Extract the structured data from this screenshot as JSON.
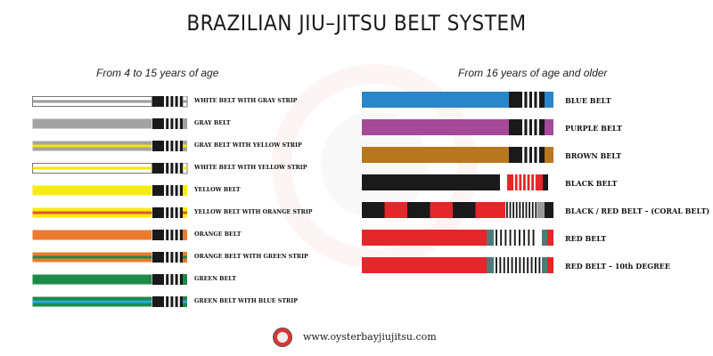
{
  "title": "BRAZILIAN JIU–JITSU BELT SYSTEM",
  "left_heading": "From 4 to 15 years of age",
  "right_heading": "From 16 years of age and older",
  "footer_url": "www.oysterbayjiujitsu.com",
  "left_belts": [
    {
      "label": "WHITE BELT WITH GRAY STRIP",
      "color": "#ffffff",
      "stripe": "#9b9b9b",
      "outline": true
    },
    {
      "label": "GRAY BELT",
      "color": "#a3a3a3",
      "stripe": null
    },
    {
      "label": "GRAY BELT WITH YELLOW STRIP",
      "color": "#a3a3a3",
      "stripe": "#f2e60e"
    },
    {
      "label": "WHITE BELT WITH YELLOW STRIP",
      "color": "#ffffff",
      "stripe": "#f2e60e",
      "outline": true
    },
    {
      "label": "YELLOW BELT",
      "color": "#f7ec12",
      "stripe": null
    },
    {
      "label": "YELLOW BELT WITH ORANGE STRIP",
      "color": "#f7ec12",
      "stripe": "#e2552c"
    },
    {
      "label": "ORANGE BELT",
      "color": "#ec7a2c",
      "stripe": null
    },
    {
      "label": "ORANGE BELT WITH GREEN STRIP",
      "color": "#ec7a2c",
      "stripe": "#1e8a49"
    },
    {
      "label": "GREEN BELT",
      "color": "#1e8a49",
      "stripe": null
    },
    {
      "label": "GREEN BELT WITH BLUE STRIP",
      "color": "#1e8a49",
      "stripe": "#28a9e0"
    }
  ],
  "right_belts": [
    {
      "label": "BLUE BELT",
      "type": "solid",
      "color": "#2a86c8"
    },
    {
      "label": "PURPLE BELT",
      "type": "solid",
      "color": "#a54a98"
    },
    {
      "label": "BROWN BELT",
      "type": "solid",
      "color": "#b7771c"
    },
    {
      "label": "BLACK BELT",
      "type": "black",
      "color": "#1a1a1a"
    },
    {
      "label": "BLACK / RED BELT –  (CORAL BELT)",
      "type": "coral"
    },
    {
      "label": "RED BELT",
      "type": "red"
    },
    {
      "label": "RED BELT – 10th DEGREE",
      "type": "red10"
    }
  ]
}
